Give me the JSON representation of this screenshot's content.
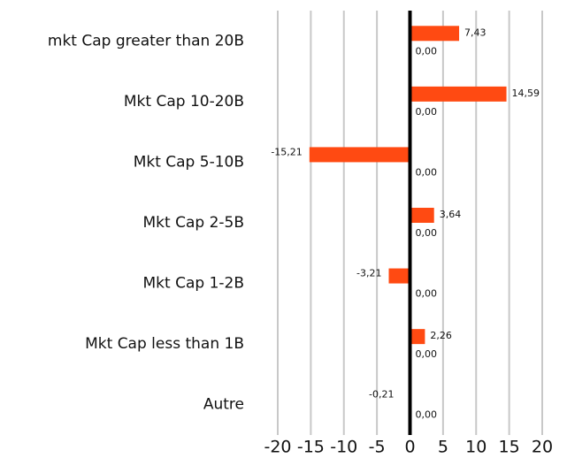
{
  "chart_data": {
    "type": "bar",
    "orientation": "horizontal",
    "categories": [
      "mkt Cap greater than 20B",
      "Mkt Cap 10-20B",
      "Mkt Cap 5-10B",
      "Mkt Cap 2-5B",
      "Mkt Cap 1-2B",
      "Mkt Cap less than 1B",
      "Autre"
    ],
    "series": [
      {
        "color": "#ff4a12",
        "values": [
          7.43,
          14.59,
          -15.21,
          3.64,
          -3.21,
          2.26,
          -0.21
        ],
        "value_labels": [
          "7,43",
          "14,59",
          "-15,21",
          "3,64",
          "-3,21",
          "2,26",
          "-0,21"
        ]
      },
      {
        "values": [
          0,
          0,
          0,
          0,
          0,
          0,
          0
        ],
        "value_labels": [
          "0,00",
          "0,00",
          "0,00",
          "0,00",
          "0,00",
          "0,00",
          "0,00"
        ]
      }
    ],
    "xlim": [
      -20,
      20
    ],
    "xticks": [
      -20,
      -15,
      -10,
      -5,
      0,
      5,
      10,
      15,
      20
    ],
    "grid": true
  }
}
